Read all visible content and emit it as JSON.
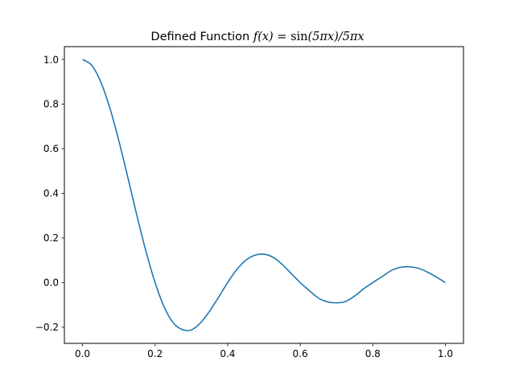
{
  "chart_data": {
    "type": "line",
    "title": {
      "prefix": "Defined Function ",
      "math_lhs": "f(x)",
      "math_eq": " = ",
      "math_fn": "sin",
      "math_rhs": "(5πx)/5πx"
    },
    "xlabel": "",
    "ylabel": "",
    "xlim": [
      -0.05,
      1.05
    ],
    "ylim": [
      -0.2725,
      1.0575
    ],
    "grid": false,
    "legend": "none",
    "x_ticks": [
      {
        "value": 0.0,
        "label": "0.0"
      },
      {
        "value": 0.2,
        "label": "0.2"
      },
      {
        "value": 0.4,
        "label": "0.4"
      },
      {
        "value": 0.6,
        "label": "0.6"
      },
      {
        "value": 0.8,
        "label": "0.8"
      },
      {
        "value": 1.0,
        "label": "1.0"
      }
    ],
    "y_ticks": [
      {
        "value": -0.2,
        "label": "−0.2"
      },
      {
        "value": 0.0,
        "label": "0.0"
      },
      {
        "value": 0.2,
        "label": "0.2"
      },
      {
        "value": 0.4,
        "label": "0.4"
      },
      {
        "value": 0.6,
        "label": "0.6"
      },
      {
        "value": 0.8,
        "label": "0.8"
      },
      {
        "value": 1.0,
        "label": "1.0"
      }
    ],
    "series": [
      {
        "color": "#1f77b4",
        "x": [
          0.0,
          0.025,
          0.05,
          0.075,
          0.1,
          0.125,
          0.15,
          0.175,
          0.2,
          0.225,
          0.25,
          0.275,
          0.3,
          0.325,
          0.35,
          0.375,
          0.4,
          0.425,
          0.45,
          0.475,
          0.5,
          0.525,
          0.55,
          0.575,
          0.6,
          0.625,
          0.65,
          0.675,
          0.7,
          0.725,
          0.75,
          0.775,
          0.8,
          0.825,
          0.85,
          0.875,
          0.9,
          0.925,
          0.95,
          0.975,
          1.0
        ],
        "y": [
          1.0,
          0.9745,
          0.9003,
          0.7842,
          0.6366,
          0.4705,
          0.3001,
          0.1395,
          0.0,
          -0.1091,
          -0.1801,
          -0.2106,
          -0.2122,
          -0.181,
          -0.1286,
          -0.0654,
          0.0,
          0.058,
          0.1,
          0.1228,
          0.1273,
          0.1136,
          0.0819,
          0.0409,
          0.0,
          -0.0359,
          -0.0693,
          -0.0862,
          -0.0909,
          -0.0846,
          -0.06,
          -0.0276,
          0.0,
          0.0262,
          0.053,
          0.068,
          0.0707,
          0.0645,
          0.0474,
          0.025,
          0.0
        ]
      }
    ]
  }
}
